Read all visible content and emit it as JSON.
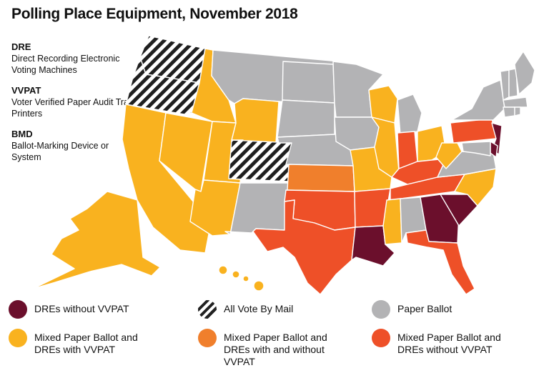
{
  "title": "Polling Place Equipment, November 2018",
  "glossary": [
    {
      "term": "DRE",
      "definition": "Direct Recording Electronic Voting Machines"
    },
    {
      "term": "VVPAT",
      "definition": "Voter Verified Paper Audit Trail Printers"
    },
    {
      "term": "BMD",
      "definition": "Ballot-Marking Device or System"
    }
  ],
  "colors": {
    "dre_no_vvpat": "#6b0f2c",
    "vote_by_mail": "#1f1f1f",
    "paper": "#b3b3b5",
    "mixed_with": "#f9b21f",
    "mixed_both": "#f07f2c",
    "mixed_without": "#ee5028"
  },
  "legend": [
    {
      "key": "dre_no_vvpat",
      "label": "DREs without VVPAT",
      "hatched": false
    },
    {
      "key": "vote_by_mail",
      "label": "All Vote By Mail",
      "hatched": true
    },
    {
      "key": "paper",
      "label": "Paper Ballot",
      "hatched": false
    },
    {
      "key": "mixed_with",
      "label": "Mixed Paper Ballot and DREs with VVPAT",
      "hatched": false
    },
    {
      "key": "mixed_both",
      "label": "Mixed Paper Ballot and DREs with and without VVPAT",
      "hatched": false
    },
    {
      "key": "mixed_without",
      "label": "Mixed Paper Ballot and DREs without VVPAT",
      "hatched": false
    }
  ],
  "states": {
    "WA": "vote_by_mail",
    "OR": "vote_by_mail",
    "CO": "vote_by_mail",
    "CA": "mixed_with",
    "NV": "mixed_with",
    "ID": "mixed_with",
    "UT": "mixed_with",
    "AZ": "mixed_with",
    "WY": "mixed_with",
    "AK": "mixed_with",
    "MO": "mixed_with",
    "WI": "mixed_with",
    "IL": "mixed_with",
    "MS": "mixed_with",
    "OH": "mixed_with",
    "WV": "mixed_with",
    "NC": "mixed_with",
    "VA": "paper",
    "KS": "mixed_both",
    "TX": "mixed_without",
    "OK": "mixed_without",
    "AR": "mixed_without",
    "IN": "mixed_without",
    "KY": "mixed_without",
    "TN": "mixed_without",
    "FL": "mixed_without",
    "PA": "mixed_without",
    "LA": "dre_no_vvpat",
    "GA": "dre_no_vvpat",
    "SC": "dre_no_vvpat",
    "NJ": "dre_no_vvpat",
    "DE": "dre_no_vvpat",
    "MT": "paper",
    "ND": "paper",
    "SD": "paper",
    "NE": "paper",
    "NM": "paper",
    "MN": "paper",
    "IA": "paper",
    "MI": "paper",
    "AL": "paper",
    "NY": "paper",
    "ME": "paper",
    "VT": "paper",
    "NH": "paper",
    "MA": "paper",
    "CT": "paper",
    "RI": "paper",
    "MD": "paper"
  }
}
